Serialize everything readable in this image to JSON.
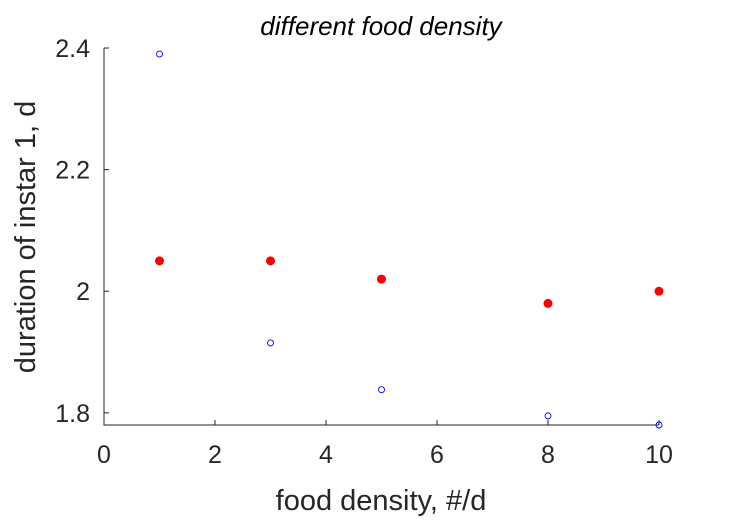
{
  "chart_data": {
    "type": "scatter",
    "title": "different food density",
    "xlabel": "food density, #/d",
    "ylabel": "duration of instar 1, d",
    "xlim": [
      0,
      10
    ],
    "ylim": [
      1.78,
      2.4
    ],
    "x_ticks": [
      0,
      2,
      4,
      6,
      8,
      10
    ],
    "x_tick_labels": [
      "0",
      "2",
      "4",
      "6",
      "8",
      "10"
    ],
    "y_ticks": [
      1.8,
      2.0,
      2.2,
      2.4
    ],
    "y_tick_labels": [
      "1.8",
      "2",
      "2.2",
      "2.4"
    ],
    "grid": false,
    "series": [
      {
        "marker": "filled-circle",
        "color": "#ff0000",
        "x": [
          1,
          3,
          5,
          8,
          10
        ],
        "y": [
          2.05,
          2.05,
          2.02,
          1.98,
          2.0
        ]
      },
      {
        "marker": "open-circle",
        "color": "#0000ff",
        "x": [
          1,
          3,
          5,
          8,
          10
        ],
        "y": [
          2.39,
          1.915,
          1.838,
          1.795,
          1.78
        ]
      }
    ]
  }
}
